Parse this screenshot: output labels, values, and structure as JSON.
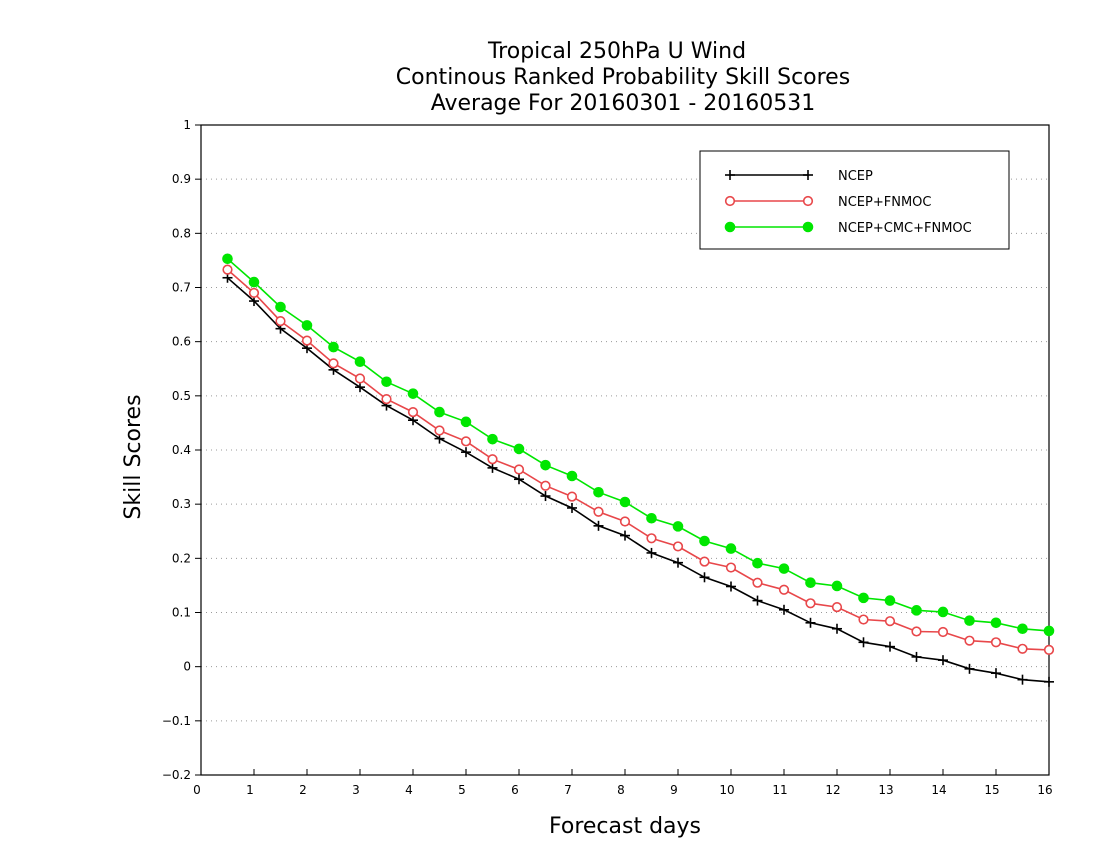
{
  "chart_data": {
    "type": "line",
    "title": [
      "Tropical 250hPa U Wind",
      "Continous Ranked Probability Skill Scores",
      "Average For 20160301 - 20160531"
    ],
    "xlabel": "Forecast days",
    "ylabel": "Skill Scores",
    "xlim": [
      0,
      16
    ],
    "ylim": [
      -0.2,
      1
    ],
    "xticks": [
      0,
      1,
      2,
      3,
      4,
      5,
      6,
      7,
      8,
      9,
      10,
      11,
      12,
      13,
      14,
      15,
      16
    ],
    "xtick_labels": [
      "0",
      "1",
      "2",
      "3",
      "4",
      "5",
      "6",
      "7",
      "8",
      "9",
      "10",
      "11",
      "12",
      "13",
      "14",
      "15",
      "16"
    ],
    "yticks": [
      -0.2,
      -0.1,
      0,
      0.1,
      0.2,
      0.3,
      0.4,
      0.5,
      0.6,
      0.7,
      0.8,
      0.9,
      1
    ],
    "ytick_labels": [
      "−0.2",
      "−0.1",
      "0",
      "0.1",
      "0.2",
      "0.3",
      "0.4",
      "0.5",
      "0.6",
      "0.7",
      "0.8",
      "0.9",
      "1"
    ],
    "grid": "horizontal dotted",
    "legend_position": "top-right",
    "x": [
      0.5,
      1,
      1.5,
      2,
      2.5,
      3,
      3.5,
      4,
      4.5,
      5,
      5.5,
      6,
      6.5,
      7,
      7.5,
      8,
      8.5,
      9,
      9.5,
      10,
      10.5,
      11,
      11.5,
      12,
      12.5,
      13,
      13.5,
      14,
      14.5,
      15,
      15.5,
      16
    ],
    "series": [
      {
        "name": "NCEP",
        "color": "#000000",
        "marker": "plus",
        "values": [
          0.718,
          0.675,
          0.624,
          0.588,
          0.548,
          0.516,
          0.482,
          0.455,
          0.421,
          0.396,
          0.367,
          0.346,
          0.315,
          0.293,
          0.26,
          0.242,
          0.21,
          0.192,
          0.165,
          0.148,
          0.122,
          0.105,
          0.081,
          0.07,
          0.045,
          0.037,
          0.018,
          0.012,
          -0.004,
          -0.012,
          -0.024,
          -0.028
        ]
      },
      {
        "name": "NCEP+FNMOC",
        "color": "#e8474a",
        "marker": "open-circle",
        "values": [
          0.733,
          0.69,
          0.638,
          0.602,
          0.56,
          0.532,
          0.494,
          0.47,
          0.436,
          0.416,
          0.383,
          0.364,
          0.334,
          0.314,
          0.286,
          0.268,
          0.237,
          0.222,
          0.194,
          0.183,
          0.155,
          0.142,
          0.117,
          0.11,
          0.087,
          0.084,
          0.065,
          0.064,
          0.048,
          0.045,
          0.033,
          0.031
        ]
      },
      {
        "name": "NCEP+CMC+FNMOC",
        "color": "#00e600",
        "marker": "filled-circle",
        "values": [
          0.753,
          0.71,
          0.664,
          0.63,
          0.59,
          0.563,
          0.526,
          0.504,
          0.47,
          0.452,
          0.42,
          0.402,
          0.372,
          0.352,
          0.322,
          0.304,
          0.274,
          0.259,
          0.232,
          0.218,
          0.191,
          0.181,
          0.155,
          0.149,
          0.127,
          0.122,
          0.104,
          0.101,
          0.085,
          0.081,
          0.07,
          0.066
        ]
      }
    ]
  }
}
